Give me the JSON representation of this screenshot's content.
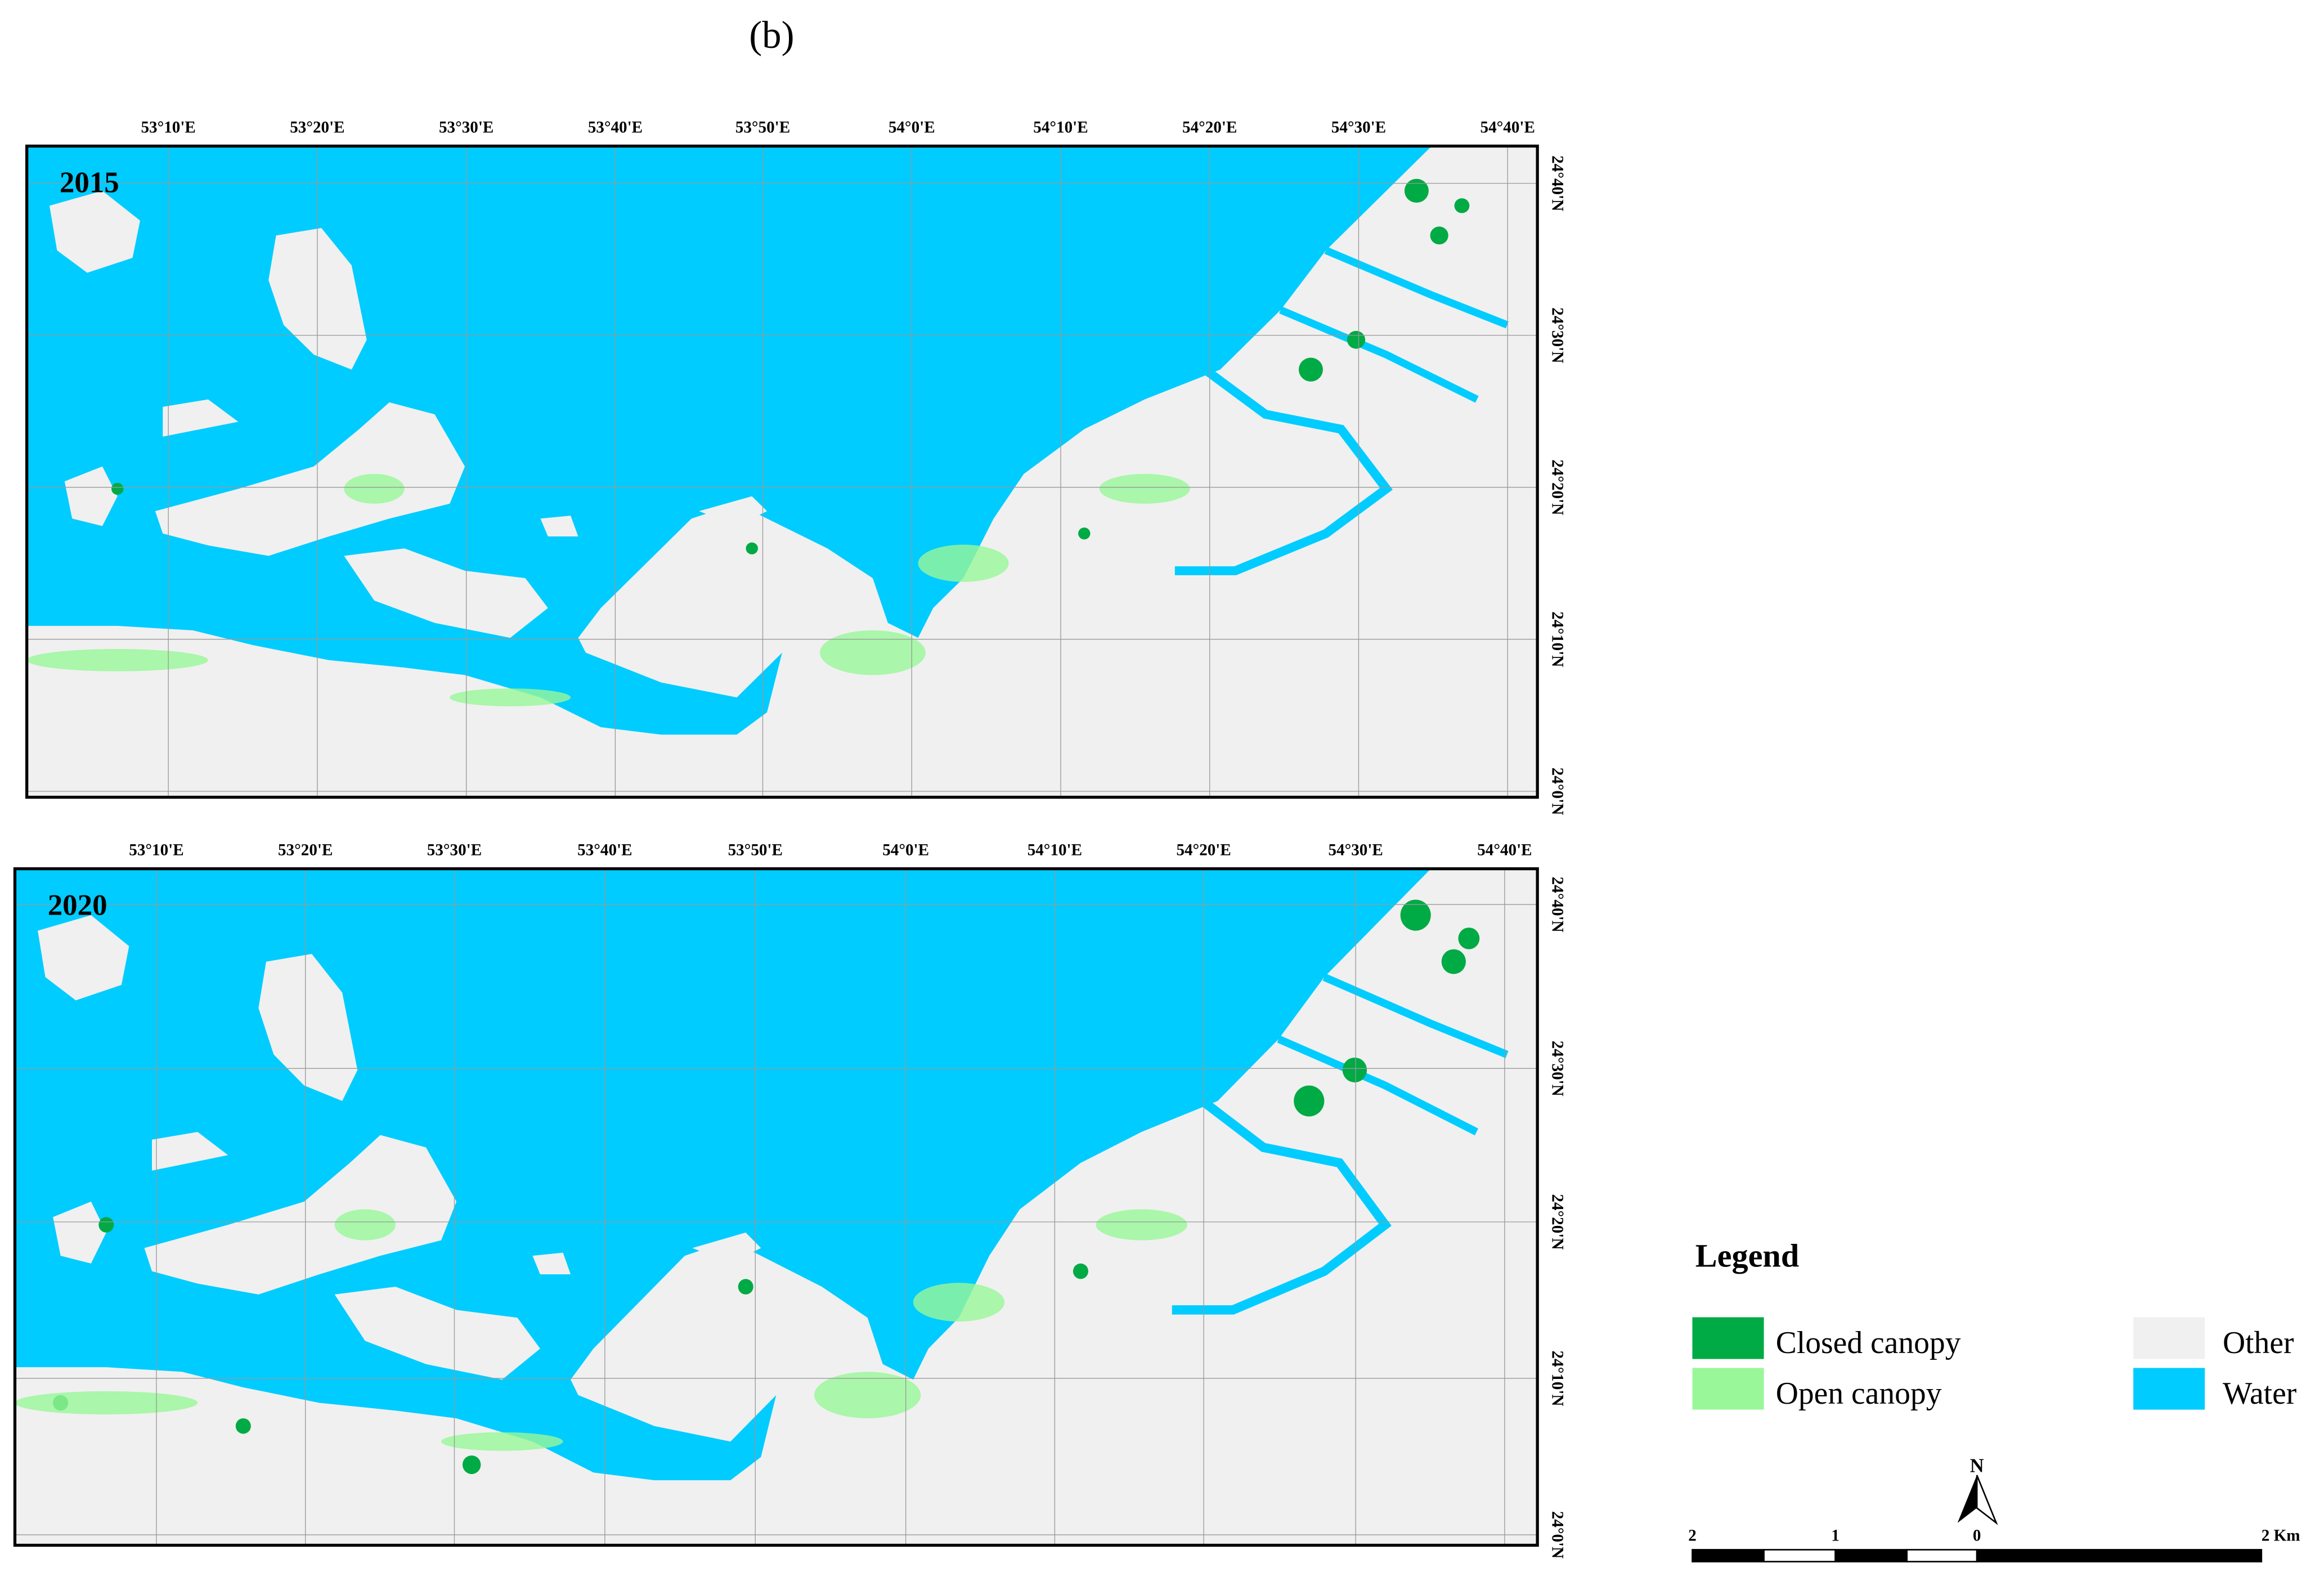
{
  "title": "(b)",
  "panels": [
    {
      "year": "2015",
      "x_labels": [
        "53°10'E",
        "53°20'E",
        "53°30'E",
        "53°40'E",
        "53°50'E",
        "54°0'E",
        "54°10'E",
        "54°20'E",
        "54°30'E",
        "54°40'E"
      ],
      "y_labels": [
        "24°40'N",
        "24°30'N",
        "24°20'N",
        "24°10'N",
        "24°0'N"
      ]
    },
    {
      "year": "2020",
      "x_labels": [
        "53°10'E",
        "53°20'E",
        "53°30'E",
        "53°40'E",
        "53°50'E",
        "54°0'E",
        "54°10'E",
        "54°20'E",
        "54°30'E",
        "54°40'E"
      ],
      "y_labels": [
        "24°40'N",
        "24°30'N",
        "24°20'N",
        "24°10'N",
        "24°0'N"
      ]
    }
  ],
  "legend": {
    "title": "Legend",
    "items": [
      {
        "label": "Closed canopy",
        "color": "#00aa44"
      },
      {
        "label": "Open canopy",
        "color": "#99f799"
      },
      {
        "label": "Other",
        "color": "#f0f0f0"
      },
      {
        "label": "Water",
        "color": "#00ccff"
      }
    ]
  },
  "scale_bar": {
    "labels": [
      "2",
      "1",
      "0",
      "2 Km"
    ]
  },
  "north_arrow": "N"
}
